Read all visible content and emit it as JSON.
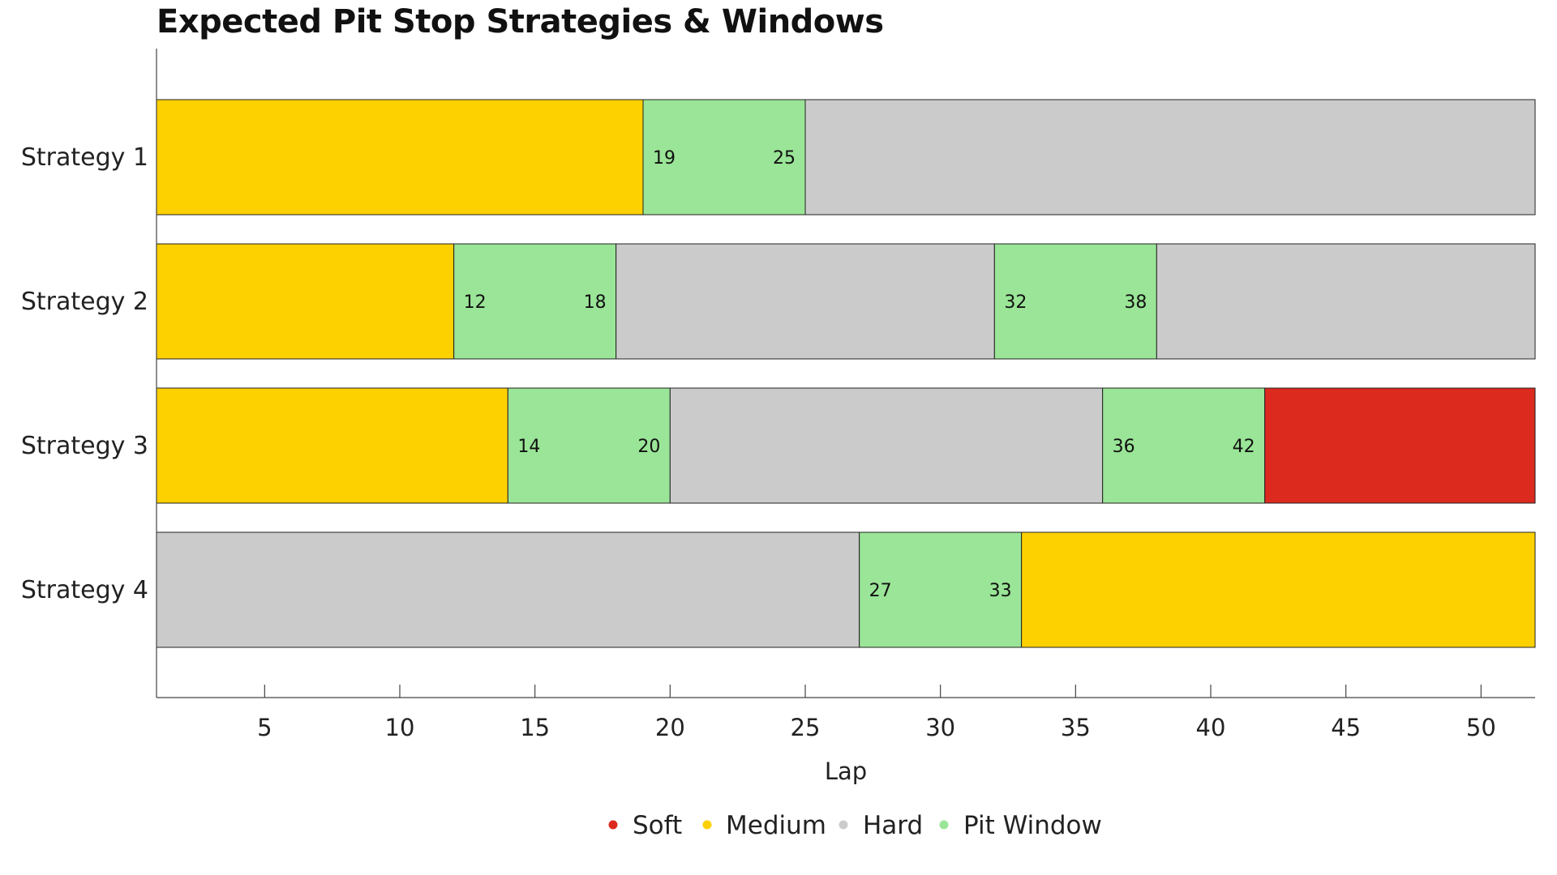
{
  "chart_data": {
    "type": "bar",
    "orientation": "horizontal-stacked",
    "title": "Expected Pit Stop Strategies & Windows",
    "xlabel": "Lap",
    "ylabel": "",
    "xlim": [
      1,
      52
    ],
    "xticks": [
      5,
      10,
      15,
      20,
      25,
      30,
      35,
      40,
      45,
      50
    ],
    "grid": false,
    "legend_position": "bottom-center",
    "colors": {
      "Soft": "#dc2a1e",
      "Medium": "#fdd000",
      "Hard": "#cbcbcb",
      "Pit Window": "#9ae597"
    },
    "legend": [
      "Soft",
      "Medium",
      "Hard",
      "Pit Window"
    ],
    "strategies": [
      {
        "label": "Strategy 1",
        "segments": [
          {
            "compound": "Medium",
            "start": 1,
            "end": 19
          },
          {
            "compound": "Pit Window",
            "start": 19,
            "end": 25,
            "labels": [
              "19",
              "25"
            ]
          },
          {
            "compound": "Hard",
            "start": 25,
            "end": 52
          }
        ]
      },
      {
        "label": "Strategy 2",
        "segments": [
          {
            "compound": "Medium",
            "start": 1,
            "end": 12
          },
          {
            "compound": "Pit Window",
            "start": 12,
            "end": 18,
            "labels": [
              "12",
              "18"
            ]
          },
          {
            "compound": "Hard",
            "start": 18,
            "end": 32
          },
          {
            "compound": "Pit Window",
            "start": 32,
            "end": 38,
            "labels": [
              "32",
              "38"
            ]
          },
          {
            "compound": "Hard",
            "start": 38,
            "end": 52
          }
        ]
      },
      {
        "label": "Strategy 3",
        "segments": [
          {
            "compound": "Medium",
            "start": 1,
            "end": 14
          },
          {
            "compound": "Pit Window",
            "start": 14,
            "end": 20,
            "labels": [
              "14",
              "20"
            ]
          },
          {
            "compound": "Hard",
            "start": 20,
            "end": 36
          },
          {
            "compound": "Pit Window",
            "start": 36,
            "end": 42,
            "labels": [
              "36",
              "42"
            ]
          },
          {
            "compound": "Soft",
            "start": 42,
            "end": 52
          }
        ]
      },
      {
        "label": "Strategy 4",
        "segments": [
          {
            "compound": "Hard",
            "start": 1,
            "end": 27
          },
          {
            "compound": "Pit Window",
            "start": 27,
            "end": 33,
            "labels": [
              "27",
              "33"
            ]
          },
          {
            "compound": "Medium",
            "start": 33,
            "end": 52
          }
        ]
      }
    ]
  }
}
